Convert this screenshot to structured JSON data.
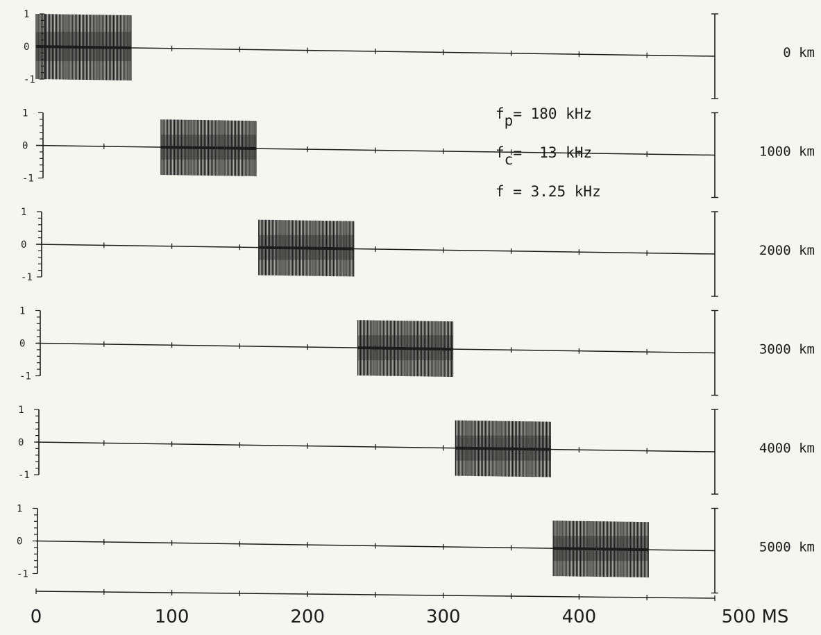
{
  "chart_data": {
    "type": "line",
    "title": "",
    "xlabel": "",
    "ylabel": "",
    "x_unit": "MS",
    "xlim": [
      0,
      500
    ],
    "ylim": [
      -1,
      1
    ],
    "x_ticks": [
      0,
      100,
      200,
      300,
      400,
      500
    ],
    "x_tick_labels": [
      "0",
      "100",
      "200",
      "300",
      "400",
      "500 MS"
    ],
    "y_ticks": [
      1,
      0,
      -1
    ],
    "y_tick_labels": [
      "1",
      "0",
      "-1"
    ],
    "grid": false,
    "legend": "none",
    "annotations": {
      "fp": {
        "symbol": "f",
        "sub": "p",
        "value": "= 180 kHz"
      },
      "fc": {
        "symbol": "f",
        "sub": "c",
        "value": "=  13 kHz"
      },
      "f": {
        "text": "f = 3.25 kHz"
      }
    },
    "series": [
      {
        "name": "0 km",
        "burst_start": 0,
        "burst_end": 70,
        "amplitude": 1.0
      },
      {
        "name": "1000 km",
        "burst_start": 92,
        "burst_end": 162,
        "amplitude": 0.85
      },
      {
        "name": "2000 km",
        "burst_start": 164,
        "burst_end": 234,
        "amplitude": 0.85
      },
      {
        "name": "3000 km",
        "burst_start": 237,
        "burst_end": 307,
        "amplitude": 0.85
      },
      {
        "name": "4000 km",
        "burst_start": 309,
        "burst_end": 379,
        "amplitude": 0.85
      },
      {
        "name": "5000 km",
        "burst_start": 381,
        "burst_end": 451,
        "amplitude": 0.85
      }
    ]
  }
}
